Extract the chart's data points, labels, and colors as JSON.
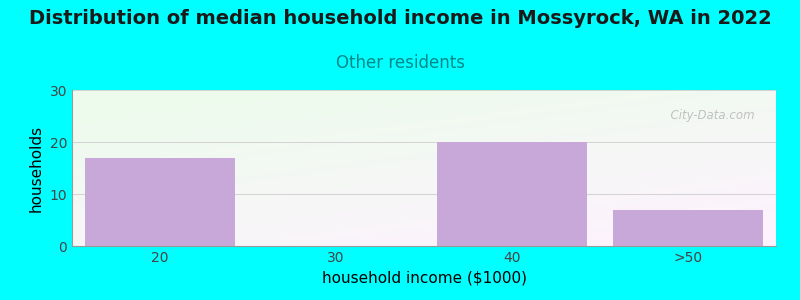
{
  "title": "Distribution of median household income in Mossyrock, WA in 2022",
  "subtitle": "Other residents",
  "xlabel": "household income ($1000)",
  "ylabel": "households",
  "categories": [
    "20",
    "30",
    "40",
    ">50"
  ],
  "values": [
    17,
    0,
    20,
    7
  ],
  "bar_color": "#c8a8d8",
  "bar_edgecolor": "none",
  "background_color": "#00ffff",
  "ylim": [
    0,
    30
  ],
  "yticks": [
    0,
    10,
    20,
    30
  ],
  "title_fontsize": 14,
  "subtitle_fontsize": 12,
  "subtitle_color": "#008888",
  "axis_label_fontsize": 11,
  "tick_fontsize": 10,
  "watermark": "  City-Data.com"
}
